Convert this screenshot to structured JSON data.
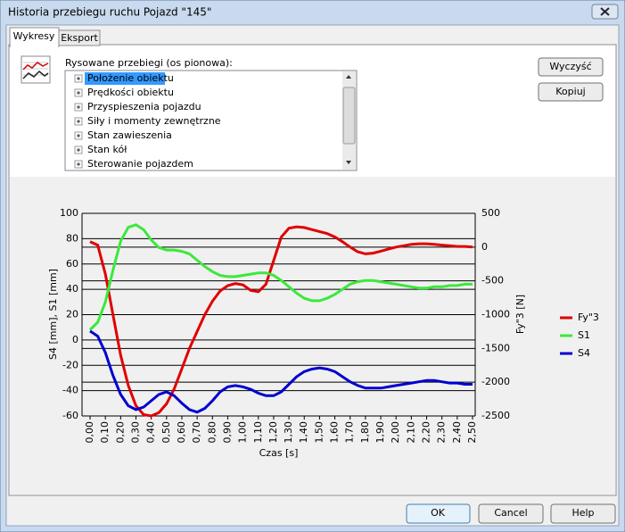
{
  "window": {
    "title": "Historia przebiegu ruchu Pojazd \"145\""
  },
  "tabs": [
    "Wykresy",
    "Eksport"
  ],
  "list_label": "Rysowane przebiegi (os pionowa):",
  "tree": {
    "items": [
      "Położenie obiektu",
      "Prędkości obiektu",
      "Przyspieszenia pojazdu",
      "Siły i momenty zewnętrzne",
      "Stan zawieszenia",
      "Stan kół",
      "Sterowanie pojazdem"
    ]
  },
  "side_buttons": [
    "Wyczyść",
    "Kopiuj"
  ],
  "footer_buttons": [
    "OK",
    "Cancel",
    "Help"
  ],
  "chart": {
    "type": "line",
    "xlabel": "Czas [s]",
    "ylabel": "S4 [mm], S1 [mm]",
    "y2label": "Fy\"3 [N]",
    "grid": true,
    "legend": "right",
    "x": [
      0,
      0.05,
      0.1,
      0.15,
      0.2,
      0.25,
      0.3,
      0.35,
      0.4,
      0.45,
      0.5,
      0.55,
      0.6,
      0.65,
      0.7,
      0.75,
      0.8,
      0.85,
      0.9,
      0.95,
      1,
      1.05,
      1.1,
      1.15,
      1.2,
      1.25,
      1.3,
      1.35,
      1.4,
      1.45,
      1.5,
      1.55,
      1.6,
      1.65,
      1.7,
      1.75,
      1.8,
      1.85,
      1.9,
      1.95,
      2,
      2.05,
      2.1,
      2.15,
      2.2,
      2.25,
      2.3,
      2.35,
      2.4,
      2.45,
      2.5
    ],
    "xlim": [
      0,
      2.5
    ],
    "xticks": [
      {
        "value": 0,
        "label": "0,00"
      },
      {
        "value": 0.1,
        "label": "0,10"
      },
      {
        "value": 0.2,
        "label": "0,20"
      },
      {
        "value": 0.3,
        "label": "0,30"
      },
      {
        "value": 0.4,
        "label": "0,40"
      },
      {
        "value": 0.5,
        "label": "0,50"
      },
      {
        "value": 0.6,
        "label": "0,60"
      },
      {
        "value": 0.7,
        "label": "0,70"
      },
      {
        "value": 0.8,
        "label": "0,80"
      },
      {
        "value": 0.9,
        "label": "0,90"
      },
      {
        "value": 1,
        "label": "1,00"
      },
      {
        "value": 1.1,
        "label": "1,10"
      },
      {
        "value": 1.2,
        "label": "1,20"
      },
      {
        "value": 1.3,
        "label": "1,30"
      },
      {
        "value": 1.4,
        "label": "1,40"
      },
      {
        "value": 1.5,
        "label": "1,50"
      },
      {
        "value": 1.6,
        "label": "1,60"
      },
      {
        "value": 1.7,
        "label": "1,70"
      },
      {
        "value": 1.8,
        "label": "1,80"
      },
      {
        "value": 1.9,
        "label": "1,90"
      },
      {
        "value": 2,
        "label": "2,00"
      },
      {
        "value": 2.1,
        "label": "2,10"
      },
      {
        "value": 2.2,
        "label": "2,20"
      },
      {
        "value": 2.3,
        "label": "2,30"
      },
      {
        "value": 2.4,
        "label": "2,40"
      },
      {
        "value": 2.5,
        "label": "2,50"
      }
    ],
    "ylim": [
      -60,
      100
    ],
    "yticks": [
      -60,
      -40,
      -20,
      0,
      20,
      40,
      60,
      80,
      100
    ],
    "y2lim": [
      -2500,
      500
    ],
    "y2ticks": [
      -2500,
      -2000,
      -1500,
      -1000,
      -500,
      0,
      500
    ],
    "series": [
      {
        "name": "Fy\"3",
        "color": "#e00000",
        "axis": "y2",
        "values": [
          80,
          30,
          -400,
          -1000,
          -1600,
          -2050,
          -2350,
          -2480,
          -2500,
          -2450,
          -2320,
          -2100,
          -1800,
          -1500,
          -1250,
          -1000,
          -800,
          -650,
          -570,
          -540,
          -560,
          -640,
          -660,
          -550,
          -200,
          150,
          280,
          300,
          290,
          260,
          230,
          200,
          150,
          80,
          0,
          -70,
          -100,
          -90,
          -60,
          -30,
          0,
          20,
          40,
          50,
          50,
          40,
          30,
          20,
          10,
          10,
          0
        ]
      },
      {
        "name": "S1",
        "color": "#3ce83c",
        "values": [
          8,
          14,
          30,
          55,
          78,
          89,
          91,
          87,
          79,
          73,
          71,
          71,
          70,
          68,
          63,
          58,
          54,
          51,
          50,
          50,
          51,
          52,
          53,
          53,
          51,
          47,
          42,
          37,
          33,
          31,
          31,
          33,
          36,
          40,
          44,
          46,
          47,
          47,
          46,
          45,
          44,
          43,
          42,
          41,
          41,
          42,
          42,
          43,
          43,
          44,
          44
        ]
      },
      {
        "name": "S4",
        "color": "#0000d0",
        "values": [
          7,
          3,
          -10,
          -28,
          -43,
          -52,
          -55,
          -53,
          -48,
          -43,
          -41,
          -44,
          -50,
          -55,
          -57,
          -54,
          -48,
          -41,
          -37,
          -36,
          -37,
          -39,
          -42,
          -44,
          -44,
          -41,
          -35,
          -29,
          -25,
          -23,
          -22,
          -23,
          -25,
          -29,
          -33,
          -36,
          -38,
          -38,
          -38,
          -37,
          -36,
          -35,
          -34,
          -33,
          -32,
          -32,
          -33,
          -34,
          -34,
          -35,
          -35
        ]
      }
    ]
  }
}
